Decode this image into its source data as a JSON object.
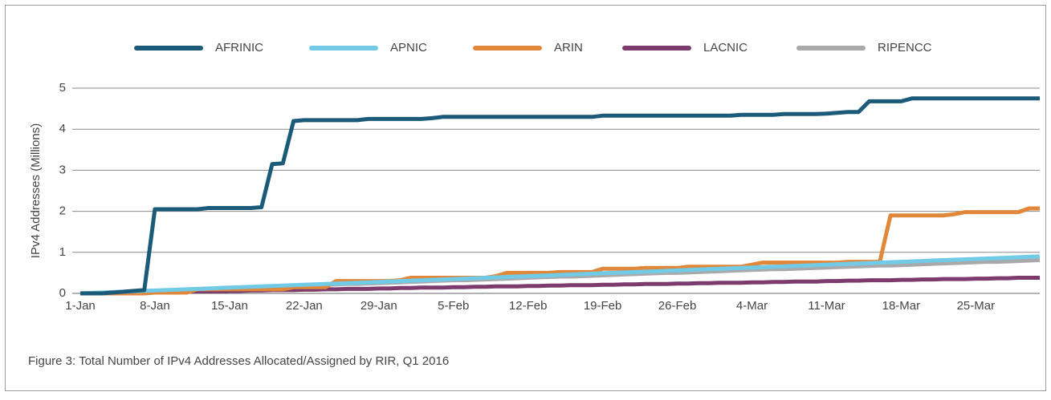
{
  "chart_data": {
    "type": "line",
    "caption": "Figure 3: Total Number of IPv4 Addresses Allocated/Assigned by RIR, Q1 2016",
    "y_label": "IPv4 Addresses (Millions)",
    "ylim": [
      0,
      5
    ],
    "yticks": [
      0,
      1,
      2,
      3,
      4,
      5
    ],
    "grid": true,
    "legend": "top",
    "categories": [
      "1-Jan",
      null,
      null,
      null,
      null,
      null,
      null,
      "8-Jan",
      null,
      null,
      null,
      null,
      null,
      null,
      "15-Jan",
      null,
      null,
      null,
      null,
      null,
      null,
      "22-Jan",
      null,
      null,
      null,
      null,
      null,
      null,
      "29-Jan",
      null,
      null,
      null,
      null,
      null,
      null,
      "5-Feb",
      null,
      null,
      null,
      null,
      null,
      null,
      "12-Feb",
      null,
      null,
      null,
      null,
      null,
      null,
      "19-Feb",
      null,
      null,
      null,
      null,
      null,
      null,
      "26-Feb",
      null,
      null,
      null,
      null,
      null,
      null,
      "4-Mar",
      null,
      null,
      null,
      null,
      null,
      null,
      "11-Mar",
      null,
      null,
      null,
      null,
      null,
      null,
      "18-Mar",
      null,
      null,
      null,
      null,
      null,
      null,
      "25-Mar",
      null,
      null,
      null,
      null,
      null,
      null
    ],
    "series": [
      {
        "name": "AFRINIC",
        "color": "#1b5a78",
        "values": [
          0,
          0,
          0,
          0.02,
          0.04,
          0.06,
          0.08,
          2.05,
          2.05,
          2.05,
          2.05,
          2.05,
          2.08,
          2.08,
          2.08,
          2.08,
          2.08,
          2.1,
          3.15,
          3.17,
          4.2,
          4.22,
          4.22,
          4.22,
          4.22,
          4.22,
          4.22,
          4.25,
          4.25,
          4.25,
          4.25,
          4.25,
          4.25,
          4.27,
          4.3,
          4.3,
          4.3,
          4.3,
          4.3,
          4.3,
          4.3,
          4.3,
          4.3,
          4.3,
          4.3,
          4.3,
          4.3,
          4.3,
          4.3,
          4.33,
          4.33,
          4.33,
          4.33,
          4.33,
          4.33,
          4.33,
          4.33,
          4.33,
          4.33,
          4.33,
          4.33,
          4.33,
          4.35,
          4.35,
          4.35,
          4.35,
          4.37,
          4.37,
          4.37,
          4.37,
          4.38,
          4.4,
          4.42,
          4.42,
          4.68,
          4.68,
          4.68,
          4.68,
          4.75,
          4.75,
          4.75,
          4.75,
          4.75,
          4.75,
          4.75,
          4.75,
          4.75,
          4.75,
          4.75,
          4.75,
          4.75
        ]
      },
      {
        "name": "APNIC",
        "color": "#72cbe6",
        "values": [
          0,
          0.01,
          0.02,
          0.03,
          0.04,
          0.05,
          0.06,
          0.07,
          0.08,
          0.09,
          0.1,
          0.11,
          0.12,
          0.13,
          0.14,
          0.15,
          0.16,
          0.17,
          0.18,
          0.19,
          0.2,
          0.21,
          0.22,
          0.23,
          0.24,
          0.25,
          0.26,
          0.27,
          0.28,
          0.29,
          0.3,
          0.31,
          0.32,
          0.33,
          0.34,
          0.35,
          0.36,
          0.37,
          0.38,
          0.39,
          0.4,
          0.41,
          0.42,
          0.43,
          0.44,
          0.45,
          0.46,
          0.47,
          0.48,
          0.49,
          0.5,
          0.51,
          0.52,
          0.53,
          0.54,
          0.55,
          0.56,
          0.57,
          0.58,
          0.59,
          0.6,
          0.61,
          0.62,
          0.63,
          0.64,
          0.65,
          0.66,
          0.67,
          0.68,
          0.69,
          0.7,
          0.71,
          0.72,
          0.73,
          0.74,
          0.75,
          0.76,
          0.77,
          0.78,
          0.79,
          0.8,
          0.81,
          0.82,
          0.83,
          0.84,
          0.85,
          0.86,
          0.87,
          0.88,
          0.89,
          0.9
        ]
      },
      {
        "name": "ARIN",
        "color": "#e0873a",
        "values": [
          0,
          0,
          0,
          0,
          0,
          0,
          0,
          0.02,
          0.02,
          0.02,
          0.02,
          0.1,
          0.1,
          0.1,
          0.1,
          0.1,
          0.1,
          0.1,
          0.1,
          0.1,
          0.15,
          0.15,
          0.15,
          0.15,
          0.3,
          0.3,
          0.3,
          0.3,
          0.3,
          0.3,
          0.32,
          0.38,
          0.38,
          0.38,
          0.38,
          0.38,
          0.38,
          0.38,
          0.38,
          0.42,
          0.5,
          0.5,
          0.5,
          0.5,
          0.5,
          0.52,
          0.52,
          0.52,
          0.52,
          0.6,
          0.6,
          0.6,
          0.6,
          0.62,
          0.62,
          0.62,
          0.62,
          0.65,
          0.65,
          0.65,
          0.65,
          0.65,
          0.65,
          0.7,
          0.75,
          0.75,
          0.75,
          0.75,
          0.75,
          0.75,
          0.75,
          0.75,
          0.77,
          0.77,
          0.77,
          0.77,
          1.9,
          1.9,
          1.9,
          1.9,
          1.9,
          1.9,
          1.93,
          1.98,
          1.98,
          1.98,
          1.98,
          1.98,
          1.98,
          2.07,
          2.07
        ]
      },
      {
        "name": "LACNIC",
        "color": "#7c3a6d",
        "values": [
          0,
          0,
          0.01,
          0.01,
          0.02,
          0.02,
          0.02,
          0.03,
          0.03,
          0.04,
          0.04,
          0.05,
          0.05,
          0.05,
          0.06,
          0.06,
          0.07,
          0.07,
          0.08,
          0.08,
          0.08,
          0.09,
          0.09,
          0.1,
          0.1,
          0.11,
          0.11,
          0.11,
          0.12,
          0.12,
          0.13,
          0.13,
          0.14,
          0.14,
          0.14,
          0.15,
          0.15,
          0.16,
          0.16,
          0.17,
          0.17,
          0.17,
          0.18,
          0.18,
          0.19,
          0.19,
          0.2,
          0.2,
          0.2,
          0.21,
          0.21,
          0.22,
          0.22,
          0.23,
          0.23,
          0.23,
          0.24,
          0.24,
          0.25,
          0.25,
          0.26,
          0.26,
          0.26,
          0.27,
          0.27,
          0.28,
          0.28,
          0.29,
          0.29,
          0.29,
          0.3,
          0.3,
          0.31,
          0.31,
          0.32,
          0.32,
          0.32,
          0.33,
          0.33,
          0.34,
          0.34,
          0.35,
          0.35,
          0.35,
          0.36,
          0.36,
          0.37,
          0.37,
          0.38,
          0.38,
          0.38
        ]
      },
      {
        "name": "RIPENCC",
        "color": "#a9a9ac",
        "values": [
          0,
          0.01,
          0.02,
          0.03,
          0.04,
          0.05,
          0.05,
          0.06,
          0.07,
          0.08,
          0.09,
          0.1,
          0.11,
          0.12,
          0.13,
          0.14,
          0.14,
          0.15,
          0.16,
          0.17,
          0.18,
          0.19,
          0.2,
          0.21,
          0.22,
          0.23,
          0.23,
          0.24,
          0.25,
          0.26,
          0.27,
          0.28,
          0.29,
          0.3,
          0.31,
          0.32,
          0.32,
          0.33,
          0.34,
          0.35,
          0.36,
          0.37,
          0.38,
          0.39,
          0.4,
          0.41,
          0.41,
          0.42,
          0.43,
          0.44,
          0.45,
          0.46,
          0.47,
          0.48,
          0.49,
          0.5,
          0.5,
          0.51,
          0.52,
          0.53,
          0.54,
          0.55,
          0.56,
          0.57,
          0.58,
          0.59,
          0.59,
          0.6,
          0.61,
          0.62,
          0.63,
          0.64,
          0.65,
          0.66,
          0.67,
          0.68,
          0.68,
          0.69,
          0.7,
          0.71,
          0.72,
          0.73,
          0.74,
          0.75,
          0.76,
          0.77,
          0.77,
          0.78,
          0.79,
          0.8,
          0.81
        ]
      }
    ]
  }
}
